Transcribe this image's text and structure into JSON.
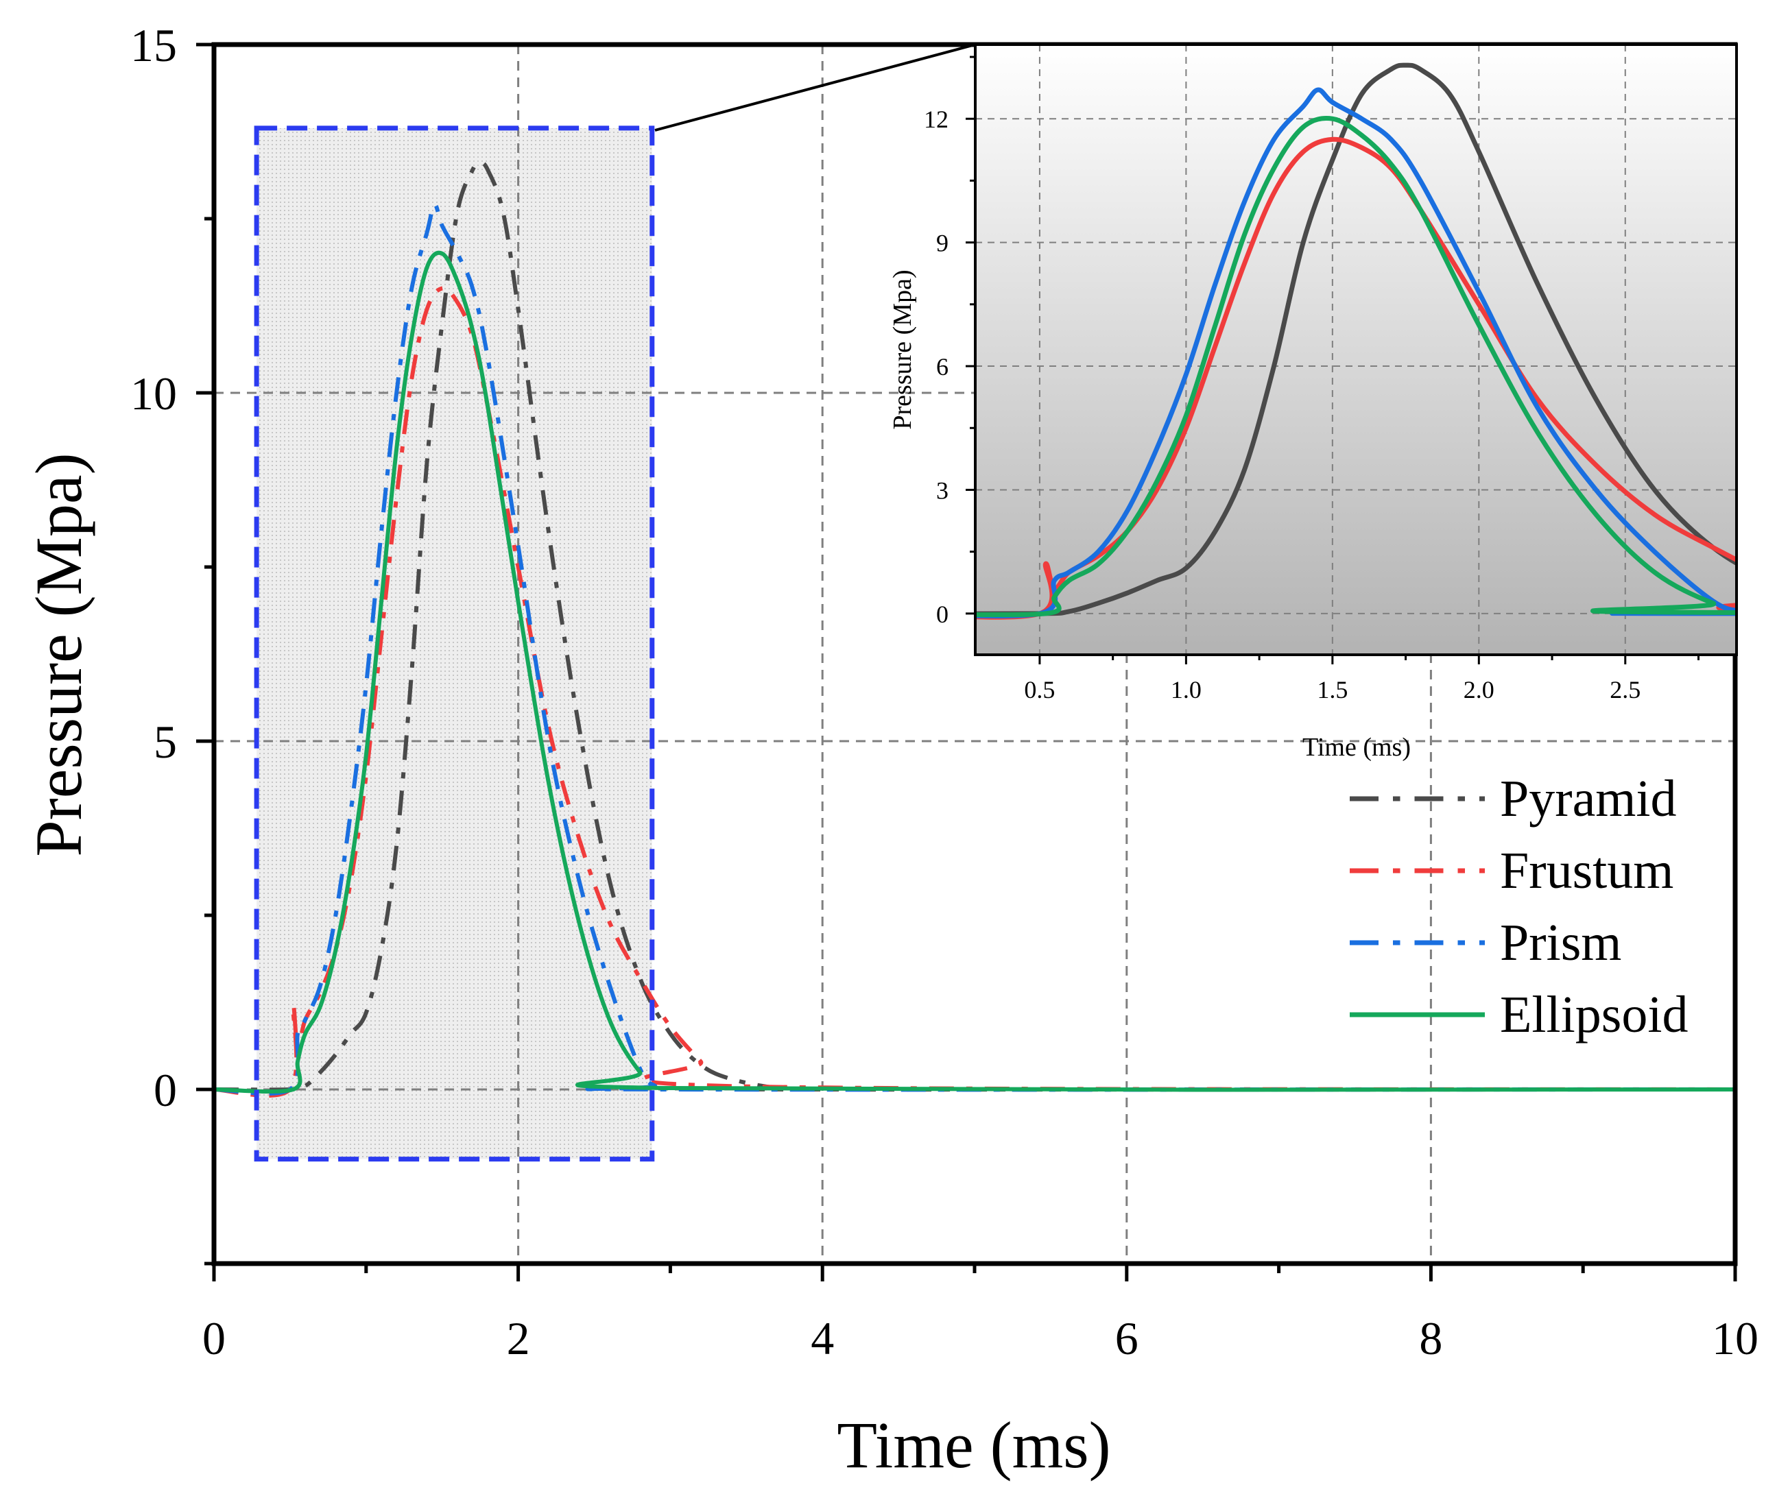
{
  "chart_data": [
    {
      "id": "main",
      "type": "line",
      "xlabel": "Time (ms)",
      "ylabel": "Pressure (Mpa)",
      "xlim": [
        0,
        10
      ],
      "ylim": [
        -2.5,
        15
      ],
      "xticks": [
        0,
        2,
        4,
        6,
        8,
        10
      ],
      "xtick_labels": [
        "0",
        "2",
        "4",
        "6",
        "8",
        "10"
      ],
      "yticks": [
        0,
        5,
        10,
        15
      ],
      "ytick_labels": [
        "0",
        "5",
        "10",
        "15"
      ],
      "grid": true,
      "legend_position": "right",
      "zoom_box": {
        "x_range": [
          0.28,
          2.88
        ],
        "y_range": [
          -1.0,
          13.8
        ]
      },
      "series": [
        {
          "name": "Pyramid",
          "color": "#4a4a4a",
          "dash": "dashdot",
          "x": [
            0,
            0.5,
            0.6,
            0.7,
            0.8,
            0.9,
            1.0,
            1.1,
            1.2,
            1.3,
            1.4,
            1.5,
            1.6,
            1.7,
            1.75,
            1.8,
            1.9,
            2.0,
            2.2,
            2.4,
            2.6,
            2.8,
            3.0,
            3.2,
            3.4,
            3.7,
            4.0,
            10.0
          ],
          "y": [
            0,
            0,
            0.05,
            0.25,
            0.5,
            0.8,
            1.1,
            2.0,
            3.5,
            6.0,
            9.0,
            11.0,
            12.6,
            13.2,
            13.3,
            13.2,
            12.6,
            11.2,
            8.0,
            5.2,
            3.0,
            1.6,
            0.8,
            0.35,
            0.15,
            0.02,
            0,
            0
          ]
        },
        {
          "name": "Frustum",
          "color": "#f03c3c",
          "dash": "dashdot",
          "x": [
            0,
            0.5,
            0.52,
            0.55,
            0.6,
            0.7,
            0.8,
            0.9,
            1.0,
            1.1,
            1.2,
            1.3,
            1.4,
            1.5,
            1.6,
            1.7,
            1.8,
            2.0,
            2.2,
            2.4,
            2.6,
            2.8,
            3.0,
            3.2,
            3.35,
            10.0
          ],
          "y": [
            0,
            0,
            1.2,
            0.6,
            1.0,
            1.4,
            2.0,
            3.0,
            4.5,
            6.5,
            8.5,
            10.2,
            11.2,
            11.5,
            11.3,
            10.8,
            9.8,
            7.5,
            5.2,
            3.6,
            2.4,
            1.6,
            0.9,
            0.4,
            0.05,
            0
          ]
        },
        {
          "name": "Prism",
          "color": "#1a6fe0",
          "dash": "dashdot",
          "x": [
            0,
            0.5,
            0.55,
            0.6,
            0.7,
            0.8,
            0.9,
            1.0,
            1.1,
            1.2,
            1.3,
            1.4,
            1.45,
            1.5,
            1.6,
            1.7,
            1.8,
            2.0,
            2.2,
            2.4,
            2.6,
            2.8,
            2.9,
            3.0,
            10.0
          ],
          "y": [
            0,
            0,
            0.8,
            1.0,
            1.5,
            2.5,
            4.0,
            5.8,
            8.0,
            10.0,
            11.5,
            12.3,
            12.7,
            12.4,
            12.0,
            11.5,
            10.5,
            7.8,
            5.0,
            3.0,
            1.5,
            0.3,
            0.05,
            0,
            0
          ]
        },
        {
          "name": "Ellipsoid",
          "color": "#15a85b",
          "dash": "solid",
          "x": [
            0,
            0.52,
            0.55,
            0.6,
            0.7,
            0.8,
            0.9,
            1.0,
            1.1,
            1.2,
            1.3,
            1.4,
            1.5,
            1.6,
            1.7,
            1.8,
            2.0,
            2.2,
            2.4,
            2.6,
            2.8,
            2.95,
            10.0
          ],
          "y": [
            0,
            0,
            0.4,
            0.8,
            1.2,
            2.0,
            3.2,
            4.8,
            7.0,
            9.2,
            10.8,
            11.8,
            12.0,
            11.6,
            10.9,
            9.8,
            7.0,
            4.4,
            2.4,
            1.0,
            0.25,
            0.02,
            0
          ]
        }
      ]
    },
    {
      "id": "inset",
      "type": "line",
      "xlabel": "Time (ms)",
      "ylabel": "Pressure (Mpa)",
      "xlim": [
        0.28,
        2.88
      ],
      "ylim": [
        -1.0,
        13.8
      ],
      "xticks": [
        0.5,
        1.0,
        1.5,
        2.0,
        2.5
      ],
      "xtick_labels": [
        "0.5",
        "1.0",
        "1.5",
        "2.0",
        "2.5"
      ],
      "yticks": [
        0,
        3,
        6,
        9,
        12
      ],
      "ytick_labels": [
        "0",
        "3",
        "6",
        "9",
        "12"
      ],
      "grid": true,
      "background": "gradient light-to-dark gray"
    }
  ],
  "colors": {
    "zoom_box": "#2b3bf0",
    "grid": "#7f7f7f",
    "axis": "#000000"
  }
}
